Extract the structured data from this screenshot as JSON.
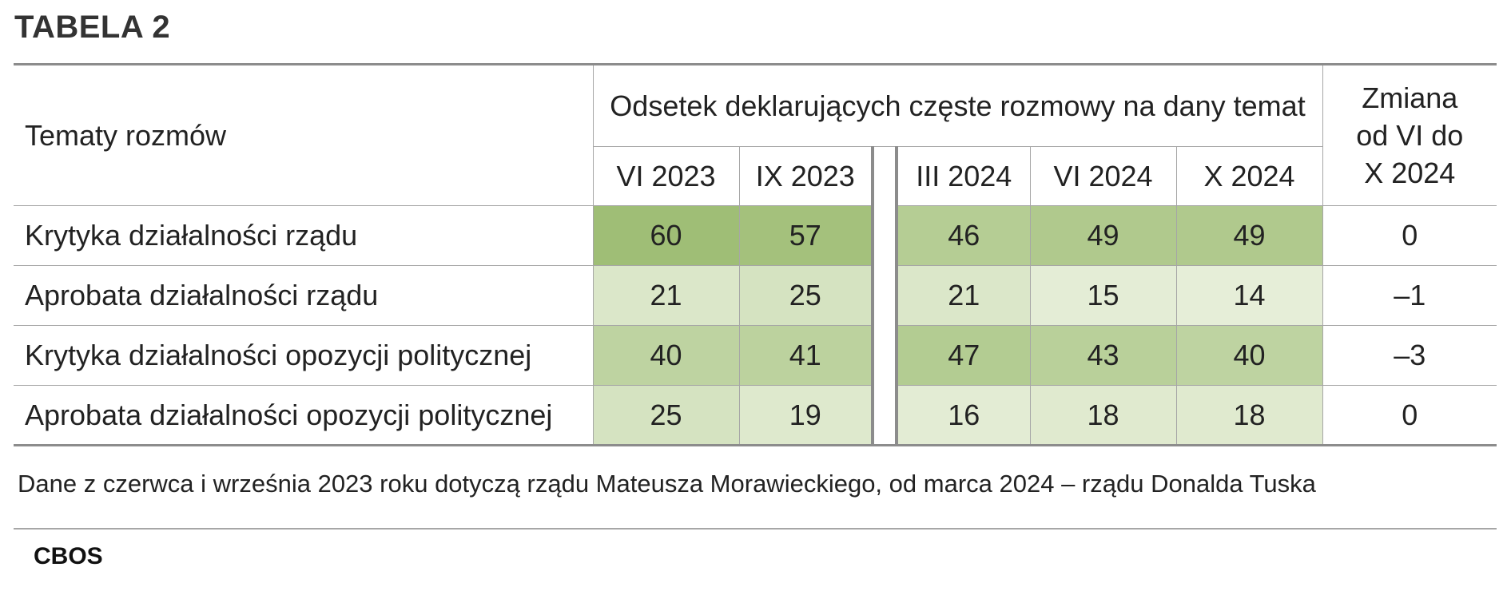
{
  "title": "TABELA 2",
  "chart_data": {
    "type": "table",
    "row_header": "Tematy rozmów",
    "group_header": "Odsetek deklarujących częste rozmowy na dany temat",
    "change_header": [
      "Zmiana",
      "od VI do",
      "X 2024"
    ],
    "columns_before_break": [
      "VI 2023",
      "IX 2023"
    ],
    "columns_after_break": [
      "III 2024",
      "VI 2024",
      "X 2024"
    ],
    "rows": [
      {
        "label": "Krytyka działalności rządu",
        "values": [
          60,
          57,
          46,
          49,
          49
        ],
        "change": "0"
      },
      {
        "label": "Aprobata działalności rządu",
        "values": [
          21,
          25,
          21,
          15,
          14
        ],
        "change": "–1"
      },
      {
        "label": "Krytyka działalności opozycji politycznej",
        "values": [
          40,
          41,
          47,
          43,
          40
        ],
        "change": "–3"
      },
      {
        "label": "Aprobata działalności opozycji politycznej",
        "values": [
          25,
          19,
          16,
          18,
          18
        ],
        "change": "0"
      }
    ],
    "color_scale": {
      "low": "#e6eed8",
      "high": "#9fbe76"
    }
  },
  "note": "Dane z czerwca i września 2023 roku dotyczą rządu Mateusza Morawieckiego, od marca 2024 – rządu Donalda Tuska",
  "source": "CBOS"
}
